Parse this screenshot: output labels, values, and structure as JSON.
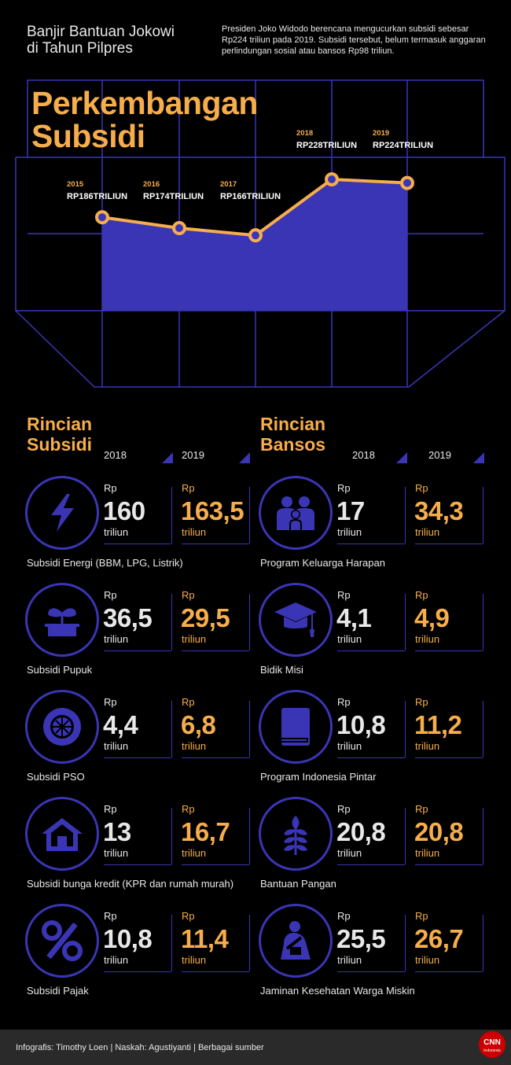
{
  "header": {
    "title_line1": "Banjir Bantuan Jokowi",
    "title_line2": "di Tahun Pilpres",
    "description": "Presiden Joko Widodo berencana mengucurkan subsidi sebesar Rp224 triliun pada 2019. Subsidi tersebut, belum termasuk anggaran perlindungan sosial atau bansos Rp98 triliun."
  },
  "chart_data": {
    "type": "area",
    "title": "Perkembangan Subsidi",
    "title_line1": "Perkembangan",
    "title_line2": "Subsidi",
    "x": [
      "2015",
      "2016",
      "2017",
      "2018",
      "2019"
    ],
    "values": [
      186,
      174,
      166,
      228,
      224
    ],
    "value_labels": [
      "RP186TRILIUN",
      "RP174TRILIUN",
      "RP166TRILIUN",
      "RP228TRILIUN",
      "RP224TRILIUN"
    ],
    "unit": "TRILIUN",
    "fill_color": "#3a35b5",
    "line_color": "#f6ad4b"
  },
  "subsidi": {
    "title_line1": "Rincian",
    "title_line2": "Subsidi",
    "col_2018": "2018",
    "col_2019": "2019",
    "items": [
      {
        "name": "Subsidi Energi (BBM, LPG, Listrik)",
        "v2018": "160",
        "v2019": "163,5",
        "icon": "lightning-icon"
      },
      {
        "name": "Subsidi Pupuk",
        "v2018": "36,5",
        "v2019": "29,5",
        "icon": "sprout-icon"
      },
      {
        "name": "Subsidi PSO",
        "v2018": "4,4",
        "v2019": "6,8",
        "icon": "wheel-icon"
      },
      {
        "name": "Subsidi bunga kredit (KPR dan rumah murah)",
        "v2018": "13",
        "v2019": "16,7",
        "icon": "house-icon"
      },
      {
        "name": "Subsidi Pajak",
        "v2018": "10,8",
        "v2019": "11,4",
        "icon": "percent-icon"
      }
    ]
  },
  "bansos": {
    "title_line1": "Rincian",
    "title_line2": "Bansos",
    "col_2018": "2018",
    "col_2019": "2019",
    "items": [
      {
        "name": "Program Keluarga Harapan",
        "v2018": "17",
        "v2019": "34,3",
        "icon": "family-icon"
      },
      {
        "name": "Bidik Misi",
        "v2018": "4,1",
        "v2019": "4,9",
        "icon": "graduation-cap-icon"
      },
      {
        "name": "Program Indonesia Pintar",
        "v2018": "10,8",
        "v2019": "11,2",
        "icon": "book-icon"
      },
      {
        "name": "Bantuan Pangan",
        "v2018": "20,8",
        "v2019": "20,8",
        "icon": "wheat-icon"
      },
      {
        "name": "Jaminan Kesehatan Warga Miskin",
        "v2018": "25,5",
        "v2019": "26,7",
        "icon": "patient-icon"
      }
    ]
  },
  "units": {
    "rp": "Rp",
    "triliun": "triliun"
  },
  "footer": {
    "credit": "Infografis: Timothy Loen | Naskah: Agustiyanti | Berbagai sumber",
    "logo_text": "CNN",
    "logo_sub": "Indonesia"
  },
  "colors": {
    "accent": "#f6ad4b",
    "blue": "#3a35b5",
    "background": "#000000"
  }
}
